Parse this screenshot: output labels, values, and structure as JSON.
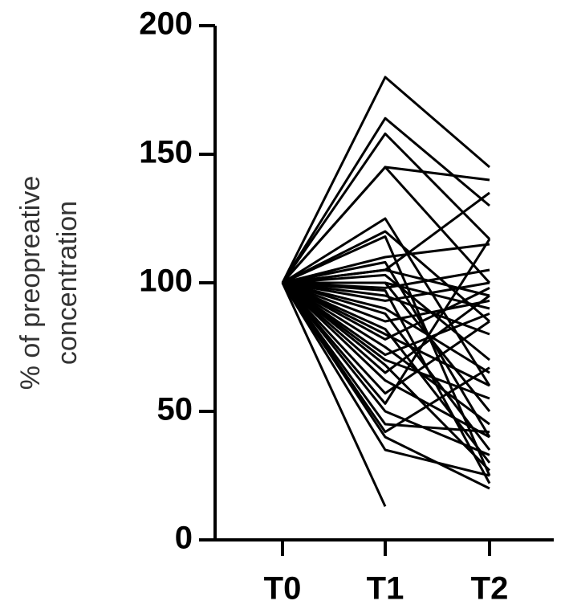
{
  "chart_data": {
    "type": "line",
    "y_label": [
      "% of preopreative",
      "concentration"
    ],
    "categories": [
      "T0",
      "T1",
      "T2"
    ],
    "color": "#000000",
    "ylim": [
      0,
      200
    ],
    "yticks": [
      0,
      50,
      100,
      150,
      200
    ],
    "series": [
      {
        "values": [
          100,
          180,
          145
        ]
      },
      {
        "values": [
          100,
          164,
          130
        ]
      },
      {
        "values": [
          100,
          158,
          117
        ]
      },
      {
        "values": [
          100,
          145,
          140
        ]
      },
      {
        "values": [
          100,
          145,
          100
        ]
      },
      {
        "values": [
          100,
          125,
          60
        ]
      },
      {
        "values": [
          100,
          120,
          85
        ]
      },
      {
        "values": [
          100,
          118,
          25
        ]
      },
      {
        "values": [
          100,
          110,
          115
        ]
      },
      {
        "values": [
          100,
          108,
          40
        ]
      },
      {
        "values": [
          100,
          105,
          135
        ]
      },
      {
        "values": [
          100,
          105,
          95
        ]
      },
      {
        "values": [
          100,
          103,
          70
        ]
      },
      {
        "values": [
          100,
          100,
          90
        ]
      },
      {
        "values": [
          100,
          100,
          50
        ]
      },
      {
        "values": [
          100,
          98,
          105
        ]
      },
      {
        "values": [
          100,
          97,
          22
        ]
      },
      {
        "values": [
          100,
          95,
          80
        ]
      },
      {
        "values": [
          100,
          93,
          100
        ]
      },
      {
        "values": [
          100,
          90,
          65
        ]
      },
      {
        "values": [
          100,
          88,
          35
        ]
      },
      {
        "values": [
          100,
          85,
          93
        ]
      },
      {
        "values": [
          100,
          82,
          30
        ]
      },
      {
        "values": [
          100,
          80,
          60
        ]
      },
      {
        "values": [
          100,
          78,
          98
        ]
      },
      {
        "values": [
          100,
          75,
          45
        ]
      },
      {
        "values": [
          100,
          72,
          88
        ]
      },
      {
        "values": [
          100,
          70,
          55
        ]
      },
      {
        "values": [
          100,
          68,
          27
        ]
      },
      {
        "values": [
          100,
          65,
          95
        ]
      },
      {
        "values": [
          100,
          62,
          40
        ]
      },
      {
        "values": [
          100,
          57,
          85
        ]
      },
      {
        "values": [
          100,
          53,
          117
        ]
      },
      {
        "values": [
          100,
          50,
          33
        ]
      },
      {
        "values": [
          100,
          45,
          42
        ]
      },
      {
        "values": [
          100,
          42,
          67
        ]
      },
      {
        "values": [
          100,
          40,
          20
        ]
      },
      {
        "values": [
          100,
          35,
          25
        ]
      },
      {
        "values": [
          100,
          13,
          null
        ]
      }
    ]
  }
}
